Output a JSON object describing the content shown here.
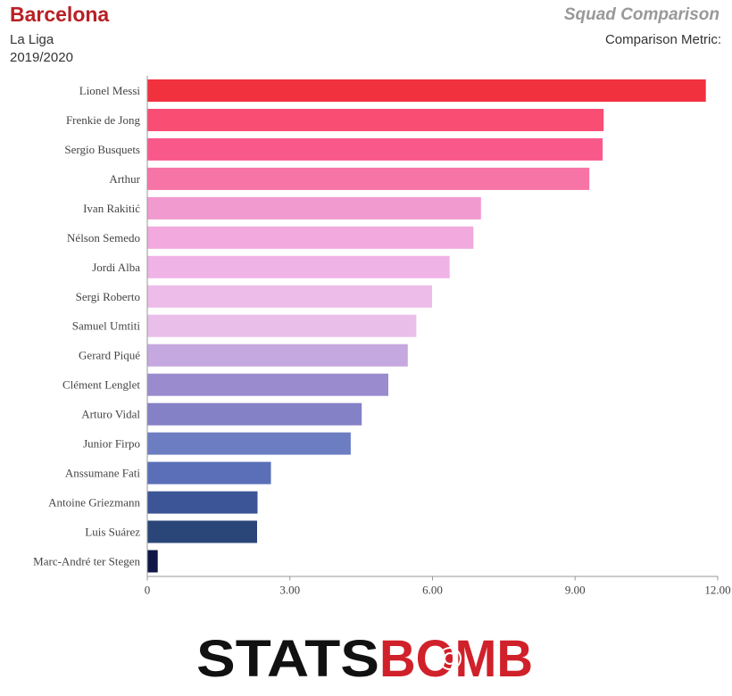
{
  "header": {
    "team": "Barcelona",
    "competition": "La Liga",
    "season": "2019/2020",
    "right_title": "Squad Comparison",
    "metric_label": "Comparison Metric:"
  },
  "logo": {
    "text_left": "STATS",
    "text_right": "BOMB",
    "color_left": "#111111",
    "color_right": "#d0202a"
  },
  "chart_data": {
    "type": "bar",
    "orientation": "horizontal",
    "categories": [
      "Lionel Messi",
      "Frenkie de Jong",
      "Sergio Busquets",
      "Arthur",
      "Ivan Rakitić",
      "Nélson Semedo",
      "Jordi Alba",
      "Sergi Roberto",
      "Samuel Umtiti",
      "Gerard Piqué",
      "Clément Lenglet",
      "Arturo Vidal",
      "Junior Firpo",
      "Anssumane Fati",
      "Antoine Griezmann",
      "Luis Suárez",
      "Marc-André ter Stegen"
    ],
    "values": [
      11.75,
      9.6,
      9.58,
      9.3,
      7.02,
      6.86,
      6.36,
      5.99,
      5.66,
      5.48,
      5.07,
      4.51,
      4.28,
      2.6,
      2.32,
      2.31,
      0.22
    ],
    "colors": [
      "#f2313f",
      "#f94d74",
      "#f9588b",
      "#f775a6",
      "#f19ad0",
      "#f1a9de",
      "#f0b3e6",
      "#eebce9",
      "#e9bfe9",
      "#c5a8df",
      "#9a8bcf",
      "#8581c7",
      "#6c7dc2",
      "#5a6fb8",
      "#3c5597",
      "#2a4679",
      "#0f1748"
    ],
    "xlim": [
      0,
      12
    ],
    "xticks": [
      "0",
      "3.00",
      "6.00",
      "9.00",
      "12.00"
    ],
    "xtick_values": [
      0,
      3,
      6,
      9,
      12
    ],
    "grid": false
  }
}
